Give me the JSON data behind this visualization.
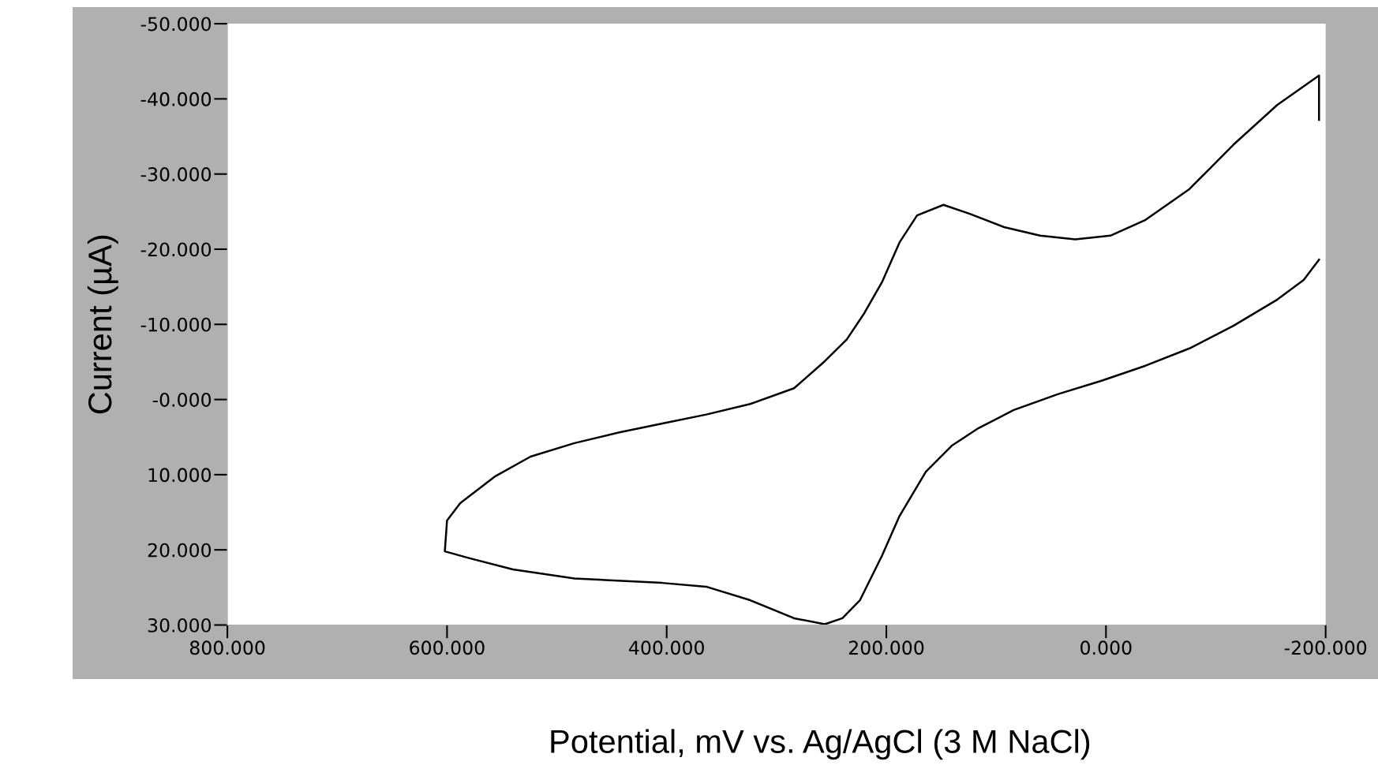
{
  "chart_data": {
    "type": "line",
    "xlabel": "Potential, mV vs. Ag/AgCl (3 M NaCl)",
    "ylabel": "Current (µA)",
    "x": [
      -194,
      -194,
      -156,
      -116,
      -76,
      -36,
      -4,
      28,
      60,
      92,
      124,
      148,
      172,
      188,
      204,
      220,
      236,
      256,
      284,
      324,
      364,
      404,
      444,
      484,
      524,
      556,
      588,
      600,
      602,
      580,
      540,
      484,
      404,
      364,
      324,
      284,
      256,
      240,
      224,
      204,
      188,
      164,
      140,
      116,
      84,
      44,
      4,
      -36,
      -76,
      -116,
      -156,
      -180,
      -194
    ],
    "series": [
      {
        "color": "#000000",
        "values": [
          -37.2,
          -43.1,
          -39.2,
          -33.9,
          -28.0,
          -23.9,
          -21.8,
          -21.3,
          -21.8,
          -22.9,
          -24.7,
          -25.9,
          -24.5,
          -20.9,
          -15.6,
          -11.5,
          -8.0,
          -5.1,
          -1.5,
          0.6,
          2.0,
          3.2,
          4.4,
          5.8,
          7.6,
          10.2,
          13.8,
          16.1,
          20.2,
          21.1,
          22.6,
          23.8,
          24.4,
          24.9,
          26.7,
          29.1,
          29.9,
          29.1,
          26.7,
          20.8,
          15.5,
          9.6,
          6.1,
          3.8,
          1.4,
          -0.7,
          -2.5,
          -4.5,
          -6.8,
          -9.8,
          -13.3,
          -15.9,
          -18.6
        ]
      }
    ],
    "xlim": [
      800,
      -200
    ],
    "ylim": [
      30,
      -50
    ],
    "xticks": [
      {
        "value": 800,
        "label": "800.000"
      },
      {
        "value": 600,
        "label": "600.000"
      },
      {
        "value": 400,
        "label": "400.000"
      },
      {
        "value": 200,
        "label": "200.000"
      },
      {
        "value": 0,
        "label": "0.000"
      },
      {
        "value": -200,
        "label": "-200.000"
      }
    ],
    "yticks": [
      {
        "value": -50,
        "label": "-50.000"
      },
      {
        "value": -40,
        "label": "-40.000"
      },
      {
        "value": -30,
        "label": "-30.000"
      },
      {
        "value": -20,
        "label": "-20.000"
      },
      {
        "value": -10,
        "label": "-10.000"
      },
      {
        "value": 0,
        "label": "-0.000"
      },
      {
        "value": 10,
        "label": "10.000"
      },
      {
        "value": 20,
        "label": "20.000"
      },
      {
        "value": 30,
        "label": "30.000"
      }
    ],
    "grid": false,
    "marker": "none",
    "line_style": "solid"
  }
}
